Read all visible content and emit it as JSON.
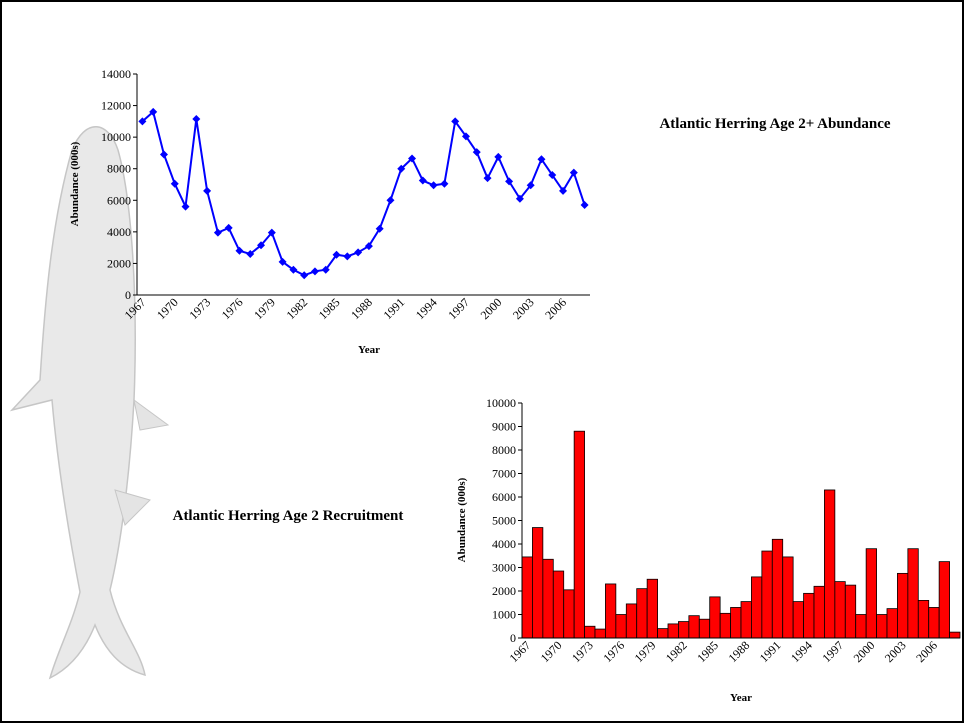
{
  "chart_data": [
    {
      "type": "line",
      "title": "Atlantic Herring Age 2+ Abundance",
      "x_label": "Year",
      "y_label": "Abundance (000s)",
      "categories": [
        "1967",
        null,
        null,
        "1970",
        null,
        null,
        "1973",
        null,
        null,
        "1976",
        null,
        null,
        "1979",
        null,
        null,
        "1982",
        null,
        null,
        "1985",
        null,
        null,
        "1988",
        null,
        null,
        "1991",
        null,
        null,
        "1994",
        null,
        null,
        "1997",
        null,
        null,
        "2000",
        null,
        null,
        "2003",
        null,
        null,
        "2006",
        null,
        null
      ],
      "values": [
        11000,
        11600,
        8900,
        7050,
        5600,
        11150,
        6600,
        3950,
        4250,
        2800,
        2600,
        3150,
        3950,
        2100,
        1600,
        1250,
        1500,
        1600,
        2550,
        2450,
        2700,
        3100,
        4200,
        6000,
        8000,
        8650,
        7250,
        6950,
        7050,
        11000,
        10050,
        9050,
        7400,
        8750,
        7200,
        6100,
        6950,
        8600,
        7600,
        6600,
        7750,
        5700
      ],
      "color": "#0000ff",
      "ylim": [
        0,
        14000
      ],
      "yticks": [
        0,
        2000,
        4000,
        6000,
        8000,
        10000,
        12000,
        14000
      ],
      "grid": false
    },
    {
      "type": "bar",
      "title": "Atlantic Herring Age 2 Recruitment",
      "x_label": "Year",
      "y_label": "Abundance (000s)",
      "categories": [
        "1967",
        null,
        null,
        "1970",
        null,
        null,
        "1973",
        null,
        null,
        "1976",
        null,
        null,
        "1979",
        null,
        null,
        "1982",
        null,
        null,
        "1985",
        null,
        null,
        "1988",
        null,
        null,
        "1991",
        null,
        null,
        "1994",
        null,
        null,
        "1997",
        null,
        null,
        "2000",
        null,
        null,
        "2003",
        null,
        null,
        "2006",
        null,
        null
      ],
      "values": [
        3450,
        4700,
        3350,
        2850,
        2050,
        8800,
        500,
        380,
        2300,
        1000,
        1450,
        2100,
        2500,
        400,
        600,
        700,
        950,
        800,
        1750,
        1050,
        1300,
        1550,
        2600,
        3700,
        4200,
        3450,
        1550,
        1900,
        2200,
        6300,
        2400,
        2250,
        1000,
        3800,
        1000,
        1250,
        2750,
        3800,
        1600,
        1300,
        3250,
        250
      ],
      "color": "#ff0000",
      "ylim": [
        0,
        10000
      ],
      "yticks": [
        0,
        1000,
        2000,
        3000,
        4000,
        5000,
        6000,
        7000,
        8000,
        9000,
        10000
      ],
      "grid": false
    }
  ]
}
